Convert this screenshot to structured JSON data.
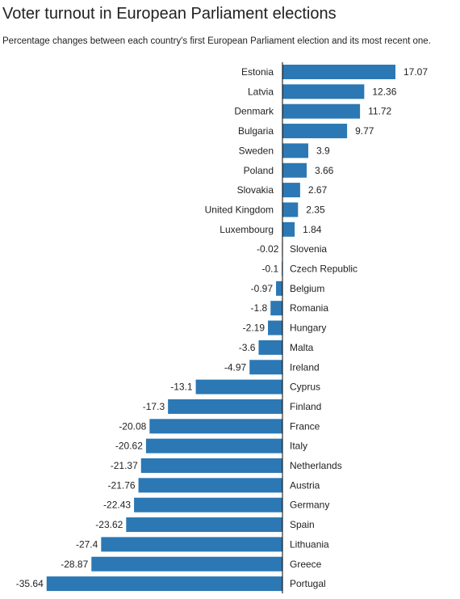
{
  "chart_data": {
    "type": "bar",
    "orientation": "horizontal",
    "title": "Voter turnout in European Parliament elections",
    "subtitle": "Percentage changes between each country's first European Parliament election and its most recent one.",
    "categories": [
      "Estonia",
      "Latvia",
      "Denmark",
      "Bulgaria",
      "Sweden",
      "Poland",
      "Slovakia",
      "United Kingdom",
      "Luxembourg",
      "Slovenia",
      "Czech Republic",
      "Belgium",
      "Romania",
      "Hungary",
      "Malta",
      "Ireland",
      "Cyprus",
      "Finland",
      "France",
      "Italy",
      "Netherlands",
      "Austria",
      "Germany",
      "Spain",
      "Lithuania",
      "Greece",
      "Portugal"
    ],
    "values": [
      17.07,
      12.36,
      11.72,
      9.77,
      3.9,
      3.66,
      2.67,
      2.35,
      1.84,
      -0.02,
      -0.1,
      -0.97,
      -1.8,
      -2.19,
      -3.6,
      -4.97,
      -13.1,
      -17.3,
      -20.08,
      -20.62,
      -21.37,
      -21.76,
      -22.43,
      -23.62,
      -27.4,
      -28.87,
      -35.64
    ],
    "value_labels": [
      "17.07",
      "12.36",
      "11.72",
      "9.77",
      "3.9",
      "3.66",
      "2.67",
      "2.35",
      "1.84",
      "-0.02",
      "-0.1",
      "-0.97",
      "-1.8",
      "-2.19",
      "-3.6",
      "-4.97",
      "-13.1",
      "-17.3",
      "-20.08",
      "-20.62",
      "-21.37",
      "-21.76",
      "-22.43",
      "-23.62",
      "-27.4",
      "-28.87",
      "-35.64"
    ],
    "xlim": [
      -35.64,
      17.07
    ],
    "bar_color": "#2b78b4",
    "axis_color": "#000000",
    "grid": false,
    "legend": "none"
  }
}
